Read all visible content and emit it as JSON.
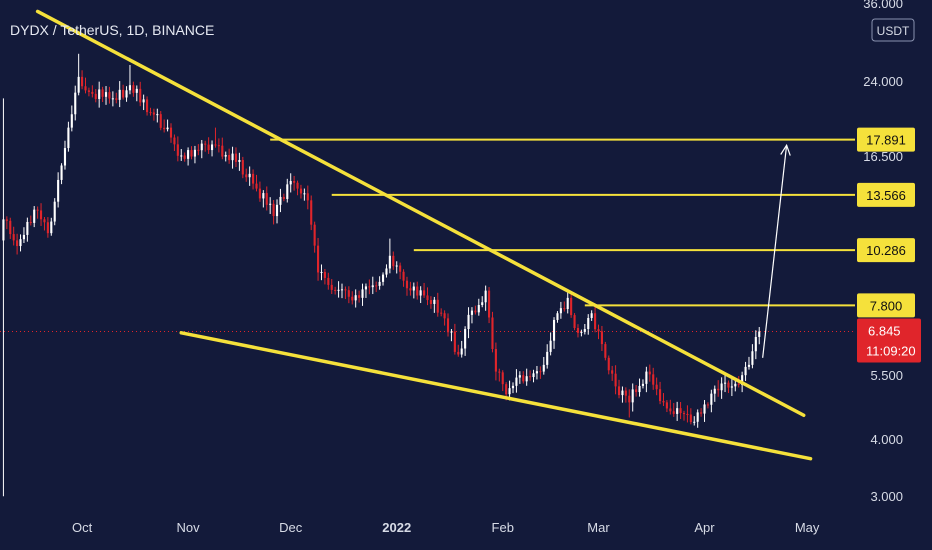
{
  "colors": {
    "background": "#131a3a",
    "up": "#ffffff",
    "down": "#e0252b",
    "trendline": "#f5e13b",
    "level_line": "#f5e13b",
    "level_tag_bg": "#f5e13b",
    "current_tag_bg": "#e0252b",
    "projection_arrow": "#ffffff",
    "axis_text": "#d7dbe6"
  },
  "chart_data": {
    "type": "candlestick",
    "title": "DYDX / TetherUS, 1D, BINANCE",
    "y_unit": "USDT",
    "y_scale": "log",
    "ylim": [
      2.8,
      36.0
    ],
    "xlim": [
      "2021-09-07",
      "2022-05-15"
    ],
    "y_ticks": [
      {
        "value": 36.0,
        "label": "36.000"
      },
      {
        "value": 24.0,
        "label": "24.000"
      },
      {
        "value": 16.5,
        "label": "16.500"
      },
      {
        "value": 5.5,
        "label": "5.500"
      },
      {
        "value": 4.0,
        "label": "4.000"
      },
      {
        "value": 3.0,
        "label": "3.000"
      }
    ],
    "x_ticks": [
      {
        "date": "2021-10-01",
        "label": "Oct",
        "bold": false
      },
      {
        "date": "2021-11-01",
        "label": "Nov",
        "bold": false
      },
      {
        "date": "2021-12-01",
        "label": "Dec",
        "bold": false
      },
      {
        "date": "2022-01-01",
        "label": "2022",
        "bold": true
      },
      {
        "date": "2022-02-01",
        "label": "Feb",
        "bold": false
      },
      {
        "date": "2022-03-01",
        "label": "Mar",
        "bold": false
      },
      {
        "date": "2022-04-01",
        "label": "Apr",
        "bold": false
      },
      {
        "date": "2022-05-01",
        "label": "May",
        "bold": false
      }
    ],
    "anchors": [
      {
        "date": "2021-09-08",
        "close": 12.0,
        "low": 3.0,
        "high": 22.0
      },
      {
        "date": "2021-09-12",
        "close": 10.5
      },
      {
        "date": "2021-09-17",
        "close": 12.6
      },
      {
        "date": "2021-09-21",
        "close": 11.2
      },
      {
        "date": "2021-09-27",
        "close": 19.0
      },
      {
        "date": "2021-09-30",
        "close": 24.5,
        "high": 27.5
      },
      {
        "date": "2021-10-04",
        "close": 22.5
      },
      {
        "date": "2021-10-10",
        "close": 22.0
      },
      {
        "date": "2021-10-15",
        "close": 23.5,
        "high": 26.0
      },
      {
        "date": "2021-10-21",
        "close": 20.5
      },
      {
        "date": "2021-10-26",
        "close": 19.0
      },
      {
        "date": "2021-10-29",
        "close": 16.5
      },
      {
        "date": "2021-11-03",
        "close": 17.0
      },
      {
        "date": "2021-11-09",
        "close": 17.4,
        "high": 19.0
      },
      {
        "date": "2021-11-15",
        "close": 16.0
      },
      {
        "date": "2021-11-21",
        "close": 14.0
      },
      {
        "date": "2021-11-26",
        "close": 12.2
      },
      {
        "date": "2021-11-30",
        "close": 14.3
      },
      {
        "date": "2021-12-03",
        "close": 14.0
      },
      {
        "date": "2021-12-06",
        "close": 13.2
      },
      {
        "date": "2021-12-09",
        "close": 9.2
      },
      {
        "date": "2021-12-14",
        "close": 8.4
      },
      {
        "date": "2021-12-19",
        "close": 8.0
      },
      {
        "date": "2021-12-26",
        "close": 8.6
      },
      {
        "date": "2021-12-30",
        "close": 10.0,
        "high": 10.9
      },
      {
        "date": "2022-01-04",
        "close": 8.5
      },
      {
        "date": "2022-01-09",
        "close": 8.2
      },
      {
        "date": "2022-01-14",
        "close": 7.5
      },
      {
        "date": "2022-01-19",
        "close": 6.1
      },
      {
        "date": "2022-01-23",
        "close": 7.6
      },
      {
        "date": "2022-01-27",
        "close": 8.4
      },
      {
        "date": "2022-01-30",
        "close": 5.6
      },
      {
        "date": "2022-02-02",
        "close": 5.0,
        "low": 4.85
      },
      {
        "date": "2022-02-06",
        "close": 5.5
      },
      {
        "date": "2022-02-12",
        "close": 5.6
      },
      {
        "date": "2022-02-17",
        "close": 7.5
      },
      {
        "date": "2022-02-20",
        "close": 8.1,
        "high": 8.4
      },
      {
        "date": "2022-02-23",
        "close": 6.8
      },
      {
        "date": "2022-02-27",
        "close": 7.5
      },
      {
        "date": "2022-03-03",
        "close": 6.0
      },
      {
        "date": "2022-03-06",
        "close": 5.2
      },
      {
        "date": "2022-03-10",
        "close": 4.8,
        "low": 4.45
      },
      {
        "date": "2022-03-15",
        "close": 5.6
      },
      {
        "date": "2022-03-20",
        "close": 4.8
      },
      {
        "date": "2022-03-25",
        "close": 4.55
      },
      {
        "date": "2022-03-28",
        "close": 4.35,
        "low": 4.3
      },
      {
        "date": "2022-04-01",
        "close": 4.75
      },
      {
        "date": "2022-04-05",
        "close": 5.1
      },
      {
        "date": "2022-04-09",
        "close": 5.2
      },
      {
        "date": "2022-04-12",
        "close": 5.5
      },
      {
        "date": "2022-04-15",
        "close": 6.2
      },
      {
        "date": "2022-04-17",
        "close": 6.845,
        "high": 7.0
      }
    ],
    "trendlines": [
      {
        "name": "upper-trendline",
        "from": {
          "date": "2021-09-18",
          "price": 34.0
        },
        "to": {
          "date": "2022-04-30",
          "price": 4.5
        }
      },
      {
        "name": "lower-trendline",
        "from": {
          "date": "2021-10-30",
          "price": 6.8
        },
        "to": {
          "date": "2022-05-02",
          "price": 3.62
        }
      }
    ],
    "levels": [
      {
        "price": 17.891,
        "label": "17.891",
        "from_date": "2021-11-25"
      },
      {
        "price": 13.566,
        "label": "13.566",
        "from_date": "2021-12-13"
      },
      {
        "price": 10.286,
        "label": "10.286",
        "from_date": "2022-01-06"
      },
      {
        "price": 7.8,
        "label": "7.800",
        "from_date": "2022-02-25"
      }
    ],
    "current_price": {
      "value": 6.845,
      "label": "6.845",
      "countdown": "11:09:20"
    },
    "projection_arrow": {
      "from": {
        "date": "2022-04-18",
        "price": 6.0
      },
      "to": {
        "date": "2022-04-25",
        "price": 17.4
      }
    }
  }
}
